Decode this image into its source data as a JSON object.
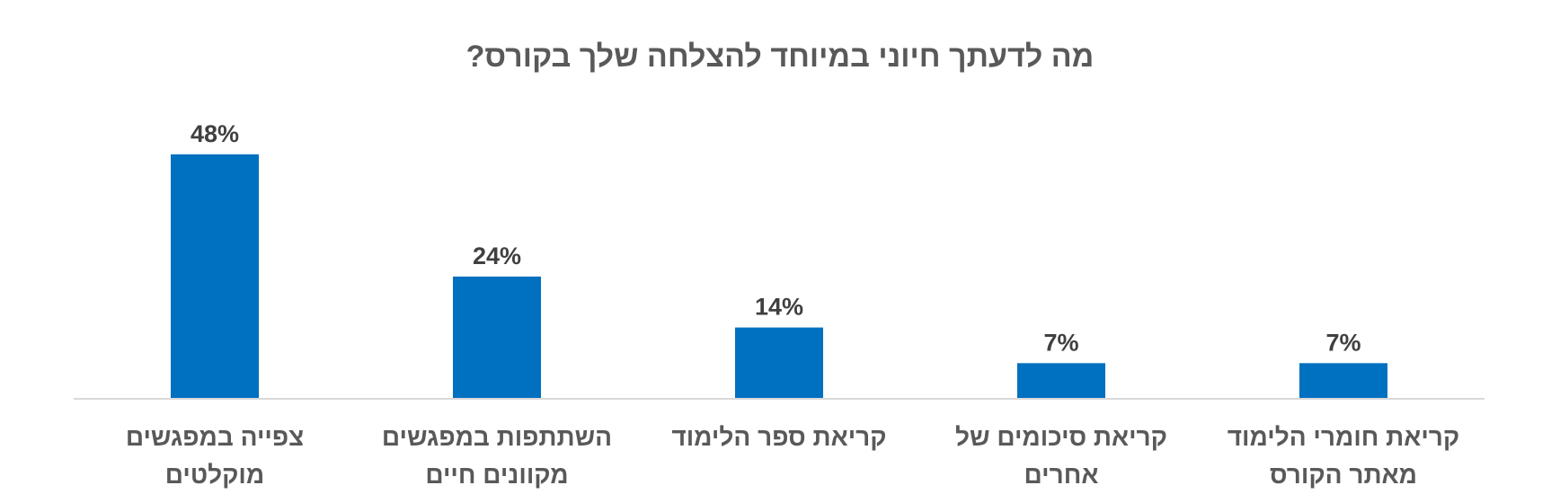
{
  "chart_data": {
    "type": "bar",
    "title": "מה לדעתך חיוני במיוחד להצלחה שלך בקורס?",
    "categories": [
      [
        "קריאת חומרי הלימוד",
        "מאתר הקורס"
      ],
      [
        "קריאת סיכומים של",
        "אחרים"
      ],
      [
        "קריאת ספר הלימוד"
      ],
      [
        "השתתפות במפגשים",
        "מקוונים חיים"
      ],
      [
        "צפייה במפגשים",
        "מוקלטים"
      ]
    ],
    "values": [
      7,
      7,
      14,
      24,
      48
    ],
    "value_labels": [
      "7%",
      "7%",
      "14%",
      "24%",
      "48%"
    ],
    "category_order": "right-to-left",
    "ylim": [
      0,
      55
    ],
    "grid": false,
    "legend": "none",
    "xlabel": "",
    "ylabel": "",
    "colors": {
      "bar": "#0070C0",
      "axis": "#D9D9D9",
      "title": "#595959",
      "data_label": "#404040",
      "category_label": "#595959"
    }
  }
}
